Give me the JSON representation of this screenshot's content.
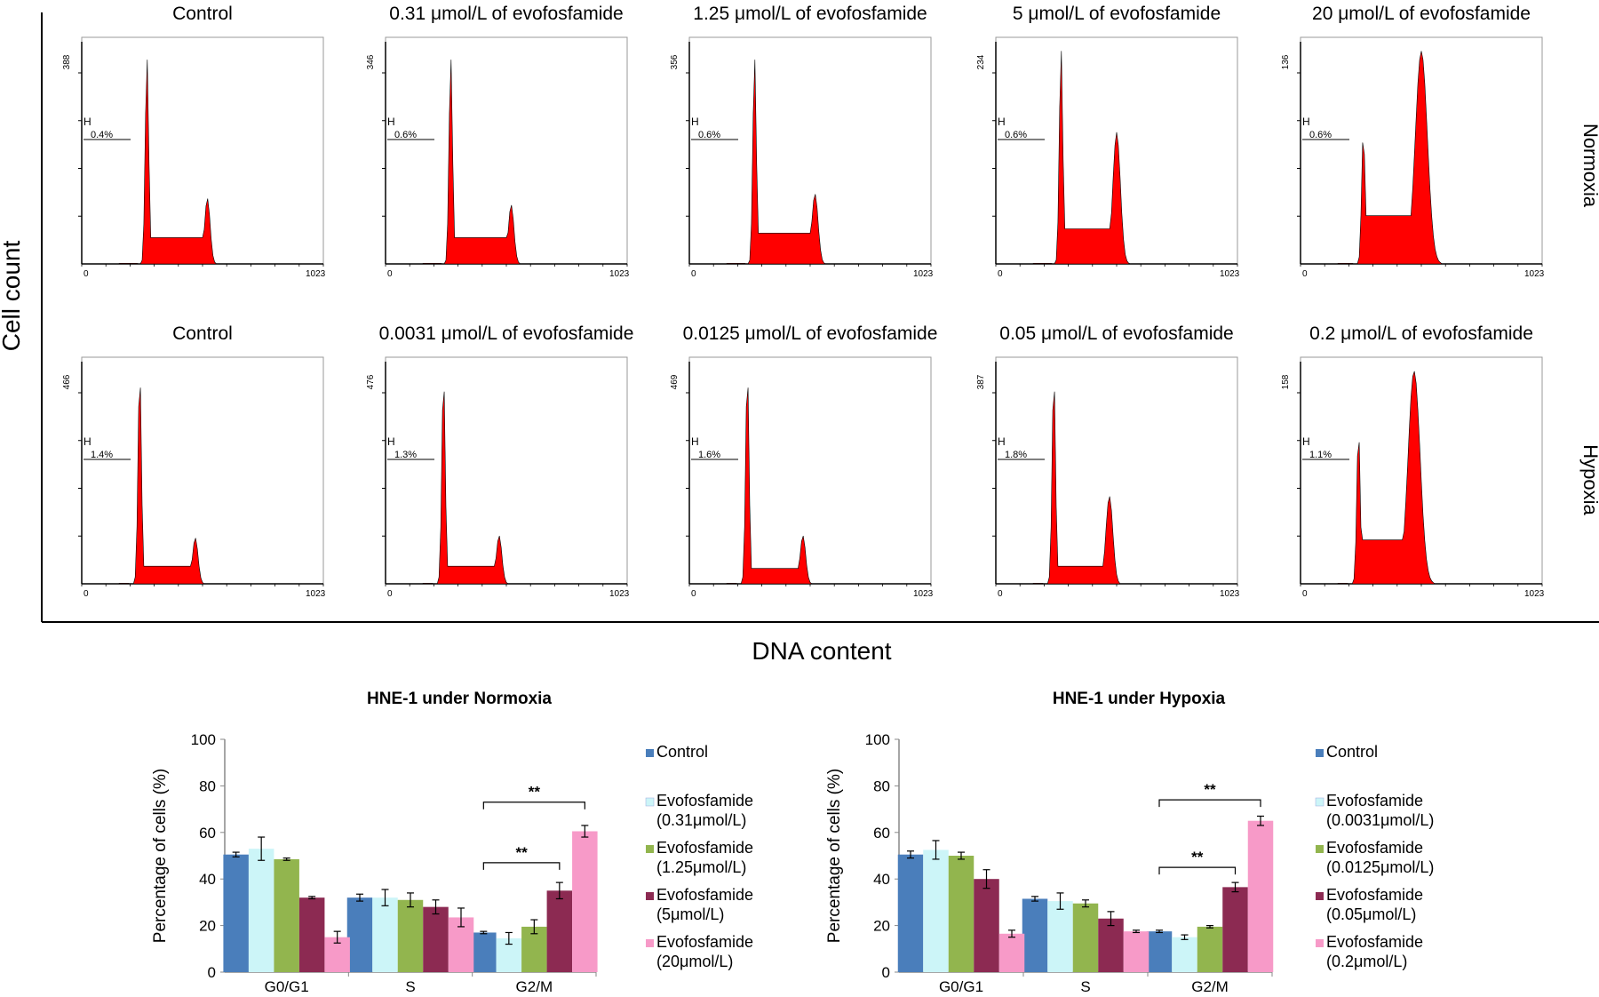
{
  "figure": {
    "y_axis_label": "Cell count",
    "x_axis_label": "DNA content",
    "row_labels": [
      "Normoxia",
      "Hypoxia"
    ],
    "hist_x_min": "0",
    "hist_x_max": "1023",
    "gate_label": "H",
    "rows": [
      {
        "panels": [
          {
            "title": "Control",
            "ymax": "388",
            "gate_pct": "0.4%",
            "peak1": 0.95,
            "peak2": 0.3,
            "s": 0.12,
            "peak1_pos": 0.27,
            "peak2_pos": 0.52,
            "g2w": 0.016
          },
          {
            "title": "0.31 μmol/L of evofosfamide",
            "ymax": "346",
            "gate_pct": "0.6%",
            "peak1": 0.95,
            "peak2": 0.27,
            "s": 0.12,
            "peak1_pos": 0.27,
            "peak2_pos": 0.52,
            "g2w": 0.016
          },
          {
            "title": "1.25 μmol/L of evofosfamide",
            "ymax": "356",
            "gate_pct": "0.6%",
            "peak1": 0.95,
            "peak2": 0.32,
            "s": 0.14,
            "peak1_pos": 0.27,
            "peak2_pos": 0.52,
            "g2w": 0.018
          },
          {
            "title": "5 μmol/L of evofosfamide",
            "ymax": "234",
            "gate_pct": "0.6%",
            "peak1": 0.99,
            "peak2": 0.6,
            "s": 0.16,
            "peak1_pos": 0.27,
            "peak2_pos": 0.5,
            "g2w": 0.022
          },
          {
            "title": "20 μmol/L of evofosfamide",
            "ymax": "136",
            "gate_pct": "0.6%",
            "peak1": 0.6,
            "peak2": 0.97,
            "s": 0.22,
            "peak1_pos": 0.26,
            "peak2_pos": 0.5,
            "g2w": 0.035
          }
        ]
      },
      {
        "panels": [
          {
            "title": "Control",
            "ymax": "466",
            "gate_pct": "1.4%",
            "peak1": 0.97,
            "peak2": 0.21,
            "s": 0.08,
            "peak1_pos": 0.24,
            "peak2_pos": 0.47,
            "g2w": 0.016
          },
          {
            "title": "0.0031 μmol/L of evofosfamide",
            "ymax": "476",
            "gate_pct": "1.3%",
            "peak1": 0.95,
            "peak2": 0.22,
            "s": 0.08,
            "peak1_pos": 0.24,
            "peak2_pos": 0.47,
            "g2w": 0.016
          },
          {
            "title": "0.0125 μmol/L of evofosfamide",
            "ymax": "469",
            "gate_pct": "1.6%",
            "peak1": 0.97,
            "peak2": 0.22,
            "s": 0.07,
            "peak1_pos": 0.24,
            "peak2_pos": 0.47,
            "g2w": 0.016
          },
          {
            "title": "0.05 μmol/L of evofosfamide",
            "ymax": "387",
            "gate_pct": "1.8%",
            "peak1": 0.95,
            "peak2": 0.4,
            "s": 0.08,
            "peak1_pos": 0.24,
            "peak2_pos": 0.47,
            "g2w": 0.02
          },
          {
            "title": "0.2 μmol/L of evofosfamide",
            "ymax": "158",
            "gate_pct": "1.1%",
            "peak1": 0.7,
            "peak2": 0.97,
            "s": 0.2,
            "peak1_pos": 0.24,
            "peak2_pos": 0.47,
            "g2w": 0.035
          }
        ]
      }
    ]
  },
  "chart_data": [
    {
      "type": "bar",
      "title": "HNE-1  under Normoxia",
      "xlabel": "",
      "ylabel": "Percentage of cells (%)",
      "ylim": [
        0,
        100
      ],
      "yticks": [
        "0",
        "20",
        "40",
        "60",
        "80",
        "100"
      ],
      "categories": [
        "G0/G1",
        "S",
        "G2/M"
      ],
      "series": [
        {
          "name": "Control",
          "legend_line2": "",
          "color": "#4a7ebb",
          "values": [
            50.5,
            32,
            17
          ],
          "errors": [
            1,
            1.5,
            0.5
          ]
        },
        {
          "name": "Evofosfamide",
          "legend_line2": "(0.31μmol/L)",
          "color": "#ccf5f8",
          "values": [
            53,
            32,
            14.5
          ],
          "errors": [
            5,
            3.5,
            2.5
          ]
        },
        {
          "name": "Evofosfamide",
          "legend_line2": "(1.25μmol/L)",
          "color": "#92b54e",
          "values": [
            48.5,
            31,
            19.5
          ],
          "errors": [
            0.5,
            3,
            3
          ]
        },
        {
          "name": "Evofosfamide",
          "legend_line2": "(5μmol/L)",
          "color": "#8c2a52",
          "values": [
            32,
            28,
            35
          ],
          "errors": [
            0.5,
            3,
            3.5
          ]
        },
        {
          "name": "Evofosfamide",
          "legend_line2": "(20μmol/L)",
          "color": "#f79ac8",
          "values": [
            15,
            23.5,
            60.5
          ],
          "errors": [
            2.5,
            4,
            2.5
          ]
        }
      ],
      "annotations": [
        {
          "text": "**",
          "from_series": 0,
          "to_series": 3,
          "category": "G2/M",
          "y": 47
        },
        {
          "text": "**",
          "from_series": 0,
          "to_series": 4,
          "category": "G2/M",
          "y": 73
        }
      ]
    },
    {
      "type": "bar",
      "title": "HNE-1  under Hypoxia",
      "xlabel": "",
      "ylabel": "Percentage of cells (%)",
      "ylim": [
        0,
        100
      ],
      "yticks": [
        "0",
        "20",
        "40",
        "60",
        "80",
        "100"
      ],
      "categories": [
        "G0/G1",
        "S",
        "G2/M"
      ],
      "series": [
        {
          "name": "Control",
          "legend_line2": "",
          "color": "#4a7ebb",
          "values": [
            50.5,
            31.5,
            17.5
          ],
          "errors": [
            1.5,
            1,
            0.5
          ]
        },
        {
          "name": "Evofosfamide",
          "legend_line2": "(0.0031μmol/L)",
          "color": "#ccf5f8",
          "values": [
            52.5,
            30.5,
            15
          ],
          "errors": [
            4,
            3.5,
            1
          ]
        },
        {
          "name": "Evofosfamide",
          "legend_line2": "(0.0125μmol/L)",
          "color": "#92b54e",
          "values": [
            50,
            29.5,
            19.5
          ],
          "errors": [
            1.5,
            1.5,
            0.5
          ]
        },
        {
          "name": "Evofosfamide",
          "legend_line2": "(0.05μmol/L)",
          "color": "#8c2a52",
          "values": [
            40,
            23,
            36.5
          ],
          "errors": [
            4,
            3,
            2
          ]
        },
        {
          "name": "Evofosfamide",
          "legend_line2": "(0.2μmol/L)",
          "color": "#f79ac8",
          "values": [
            16.5,
            17.5,
            65
          ],
          "errors": [
            1.5,
            0.5,
            2
          ]
        }
      ],
      "annotations": [
        {
          "text": "**",
          "from_series": 0,
          "to_series": 3,
          "category": "G2/M",
          "y": 45
        },
        {
          "text": "**",
          "from_series": 0,
          "to_series": 4,
          "category": "G2/M",
          "y": 74
        }
      ]
    }
  ]
}
